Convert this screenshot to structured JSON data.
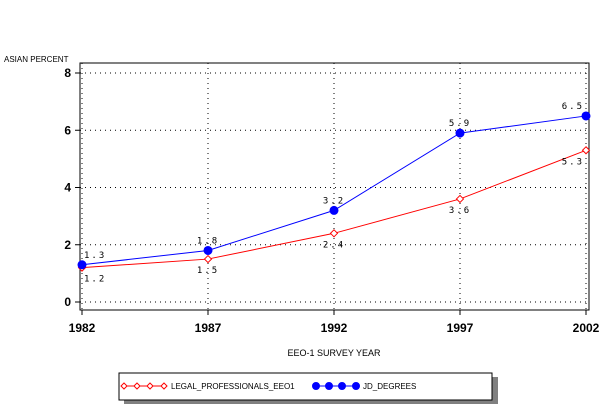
{
  "chart_data": {
    "type": "line",
    "x": [
      1982,
      1987,
      1992,
      1997,
      2002
    ],
    "x_tick_labels": [
      "1982",
      "1987",
      "1992",
      "1997",
      "2002"
    ],
    "y_tick_labels": [
      "0",
      "2",
      "4",
      "6",
      "8"
    ],
    "ylim": [
      0,
      8
    ],
    "xlim": [
      1982,
      2002
    ],
    "ylabel": "ASIAN PERCENT",
    "xlabel": "EEO-1 SURVEY YEAR",
    "grid": true,
    "legend_position": "bottom",
    "series": [
      {
        "name": "LEGAL_PROFESSIONALS_EEO1",
        "values": [
          1.2,
          1.5,
          2.4,
          3.6,
          5.3
        ],
        "labels": [
          "1.2",
          "1.5",
          "2.4",
          "3.6",
          "5.3"
        ],
        "color": "#ff0000",
        "marker": "diamond-open",
        "label_position": "below"
      },
      {
        "name": "JD_DEGREES",
        "values": [
          1.3,
          1.8,
          3.2,
          5.9,
          6.5
        ],
        "labels": [
          "1.3",
          "1.8",
          "3.2",
          "5.9",
          "6.5"
        ],
        "color": "#0000ff",
        "marker": "circle-filled",
        "label_position": "above"
      }
    ]
  }
}
